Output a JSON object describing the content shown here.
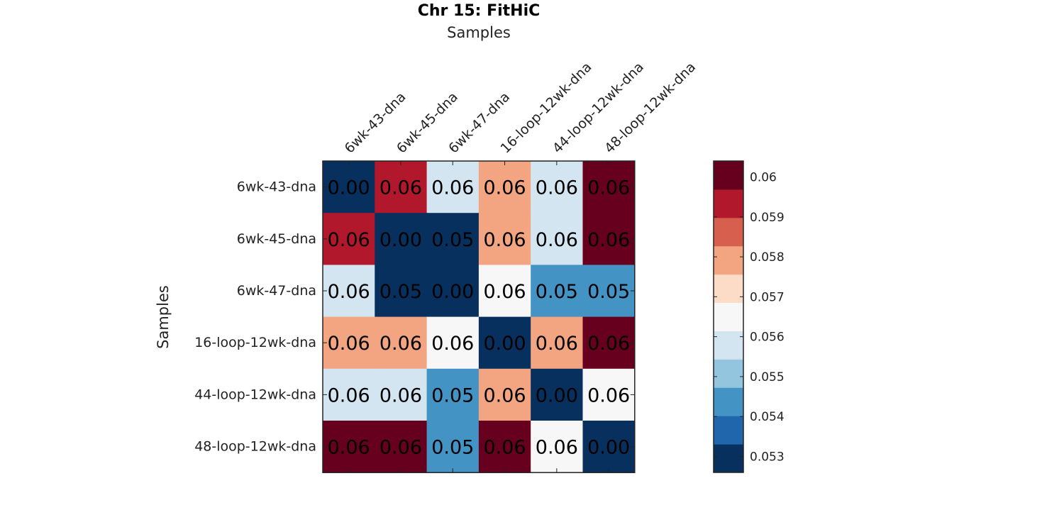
{
  "chart_data": {
    "type": "heatmap",
    "title": "Chr 15: FitHiC",
    "xlabel": "Samples",
    "ylabel": "Samples",
    "x_categories": [
      "6wk-43-dna",
      "6wk-45-dna",
      "6wk-47-dna",
      "16-loop-12wk-dna",
      "44-loop-12wk-dna",
      "48-loop-12wk-dna"
    ],
    "y_categories": [
      "6wk-43-dna",
      "6wk-45-dna",
      "6wk-47-dna",
      "16-loop-12wk-dna",
      "44-loop-12wk-dna",
      "48-loop-12wk-dna"
    ],
    "values": [
      [
        0.0,
        0.0592,
        0.0558,
        0.0581,
        0.0558,
        0.0602
      ],
      [
        0.0592,
        0.0,
        0.0529,
        0.0581,
        0.0558,
        0.0598
      ],
      [
        0.0558,
        0.0529,
        0.0,
        0.0565,
        0.0545,
        0.0545
      ],
      [
        0.0581,
        0.0581,
        0.0565,
        0.0,
        0.0581,
        0.0602
      ],
      [
        0.0558,
        0.0558,
        0.0545,
        0.0581,
        0.0,
        0.0565
      ],
      [
        0.0602,
        0.0598,
        0.0545,
        0.0602,
        0.0565,
        0.0
      ]
    ],
    "cell_labels": [
      [
        "0.00",
        "0.06",
        "0.06",
        "0.06",
        "0.06",
        "0.06"
      ],
      [
        "0.06",
        "0.00",
        "0.05",
        "0.06",
        "0.06",
        "0.06"
      ],
      [
        "0.06",
        "0.05",
        "0.00",
        "0.06",
        "0.05",
        "0.05"
      ],
      [
        "0.06",
        "0.06",
        "0.06",
        "0.00",
        "0.06",
        "0.06"
      ],
      [
        "0.06",
        "0.06",
        "0.05",
        "0.06",
        "0.00",
        "0.06"
      ],
      [
        "0.06",
        "0.06",
        "0.05",
        "0.06",
        "0.06",
        "0.00"
      ]
    ],
    "colorbar": {
      "min": 0.0526,
      "max": 0.0604,
      "ticks": [
        0.053,
        0.054,
        0.055,
        0.056,
        0.057,
        0.058,
        0.059,
        0.06
      ],
      "tick_labels": [
        "0.053",
        "0.054",
        "0.055",
        "0.056",
        "0.057",
        "0.058",
        "0.059",
        "0.06"
      ],
      "colors": [
        "#08305e",
        "#2066ad",
        "#4493c5",
        "#93c5de",
        "#d2e5f0",
        "#f7f7f7",
        "#fcdbc7",
        "#f3a582",
        "#d6604d",
        "#b2182b",
        "#67001f"
      ]
    },
    "grid": false
  }
}
